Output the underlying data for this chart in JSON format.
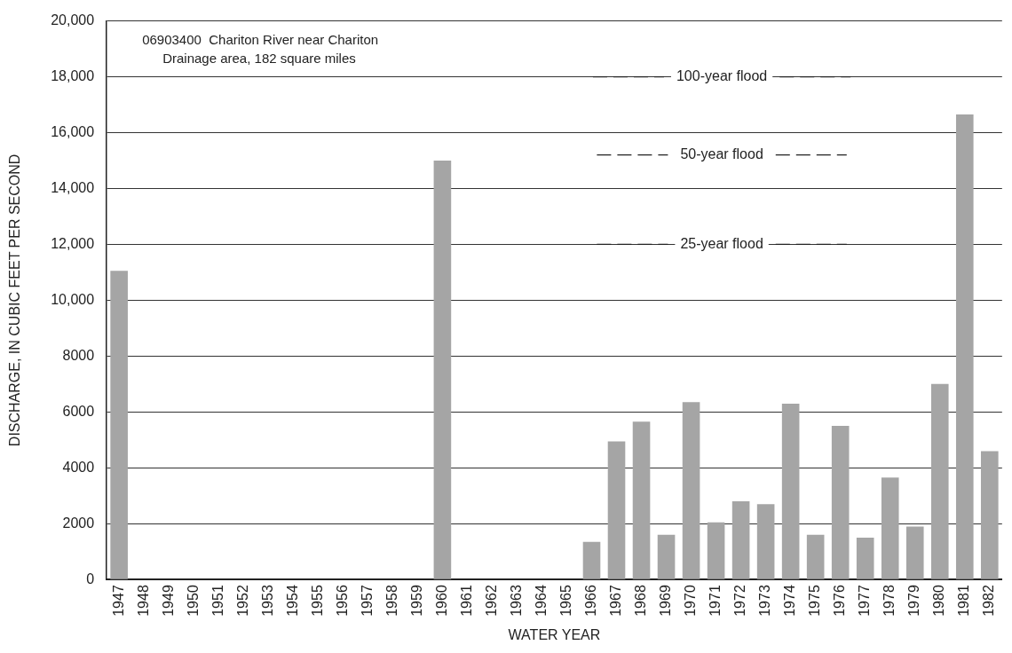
{
  "chart_data": {
    "type": "bar",
    "title": "06903400  Chariton River near Chariton",
    "subtitle": "Drainage area, 182 square miles",
    "xlabel": "WATER YEAR",
    "ylabel": "DISCHARGE, IN CUBIC FEET PER SECOND",
    "categories": [
      "1947",
      "1948",
      "1949",
      "1950",
      "1951",
      "1952",
      "1953",
      "1954",
      "1955",
      "1956",
      "1957",
      "1958",
      "1959",
      "1960",
      "1961",
      "1962",
      "1963",
      "1964",
      "1965",
      "1966",
      "1967",
      "1968",
      "1969",
      "1970",
      "1971",
      "1972",
      "1973",
      "1974",
      "1975",
      "1976",
      "1977",
      "1978",
      "1979",
      "1980",
      "1981",
      "1982"
    ],
    "values": [
      11050,
      null,
      null,
      null,
      null,
      null,
      null,
      null,
      null,
      null,
      null,
      null,
      null,
      15000,
      null,
      null,
      null,
      null,
      null,
      1350,
      4950,
      5650,
      1600,
      6350,
      2050,
      2800,
      2700,
      6300,
      1600,
      5500,
      1500,
      3650,
      1900,
      7000,
      16650,
      4600
    ],
    "color": "#a5a5a5",
    "ylim": [
      0,
      20000
    ],
    "yticks": [
      0,
      2000,
      4000,
      6000,
      8000,
      {
        "value": 10000,
        "label": "10,000"
      },
      {
        "value": 12000,
        "label": "12,000"
      },
      {
        "value": 14000,
        "label": "14,000"
      },
      {
        "value": 16000,
        "label": "16,000"
      },
      {
        "value": 18000,
        "label": "18,000"
      },
      {
        "value": 20000,
        "label": "20,000"
      }
    ],
    "grid": "y",
    "ref_lines": [
      {
        "axis": "y",
        "value": 18000,
        "label": "100-year flood",
        "line_style": "dashed"
      },
      {
        "axis": "y",
        "value": 15200,
        "label": "50-year flood",
        "line_style": "dashed"
      },
      {
        "axis": "y",
        "value": 12000,
        "label": "25-year flood",
        "line_style": "dashed"
      }
    ]
  }
}
